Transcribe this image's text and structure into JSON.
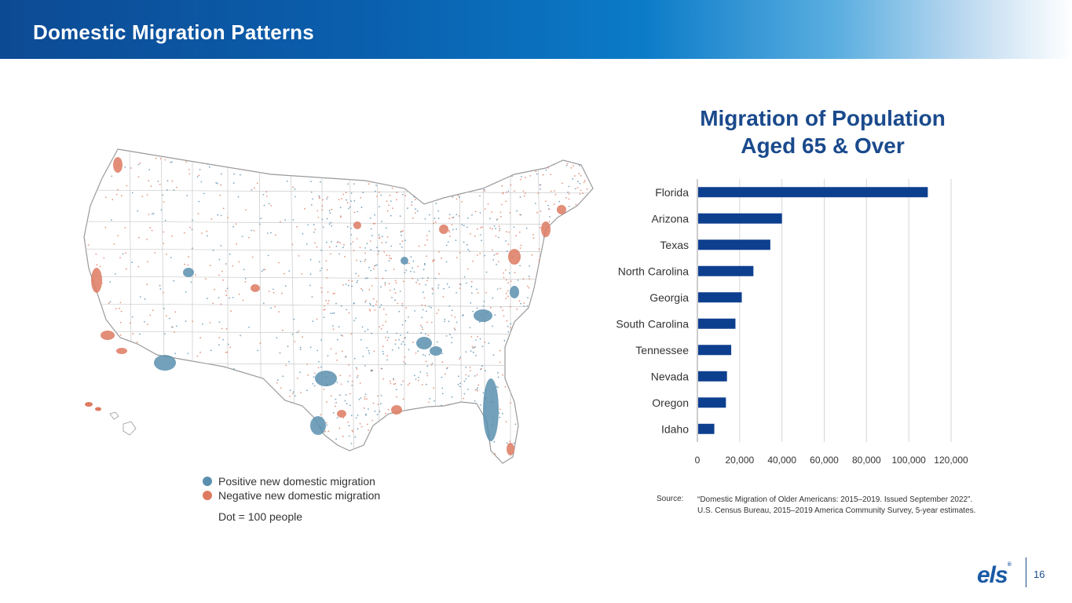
{
  "header": {
    "title": "Domestic Migration Patterns"
  },
  "map": {
    "legend": {
      "positive_label": "Positive new domestic migration",
      "negative_label": "Negative new domestic migration",
      "positive_color": "#5b8fae",
      "negative_color": "#dd7a60",
      "note": "Dot = 100 people"
    }
  },
  "chart_data": {
    "type": "bar",
    "orientation": "horizontal",
    "title_line1": "Migration of Population",
    "title_line2": "Aged 65 & Over",
    "categories": [
      "Florida",
      "Arizona",
      "Texas",
      "North Carolina",
      "Georgia",
      "South Carolina",
      "Tennessee",
      "Nevada",
      "Oregon",
      "Idaho"
    ],
    "values": [
      109000,
      40000,
      34500,
      26500,
      21000,
      18000,
      16000,
      14000,
      13500,
      8000
    ],
    "xlim": [
      0,
      120000
    ],
    "xticks": [
      0,
      20000,
      40000,
      60000,
      80000,
      100000,
      120000
    ],
    "xtick_labels": [
      "0",
      "20,000",
      "40,000",
      "60,000",
      "80,000",
      "100,000",
      "120,000"
    ],
    "bar_color": "#0d3f8f",
    "grid": true
  },
  "source": {
    "label": "Source:",
    "line1": "“Domestic Migration of Older Americans: 2015–2019. Issued September 2022”.",
    "line2": "U.S. Census Bureau, 2015–2019 America Community Survey, 5-year estimates."
  },
  "footer": {
    "logo": "els",
    "logo_mark": "®",
    "page_number": "16"
  }
}
